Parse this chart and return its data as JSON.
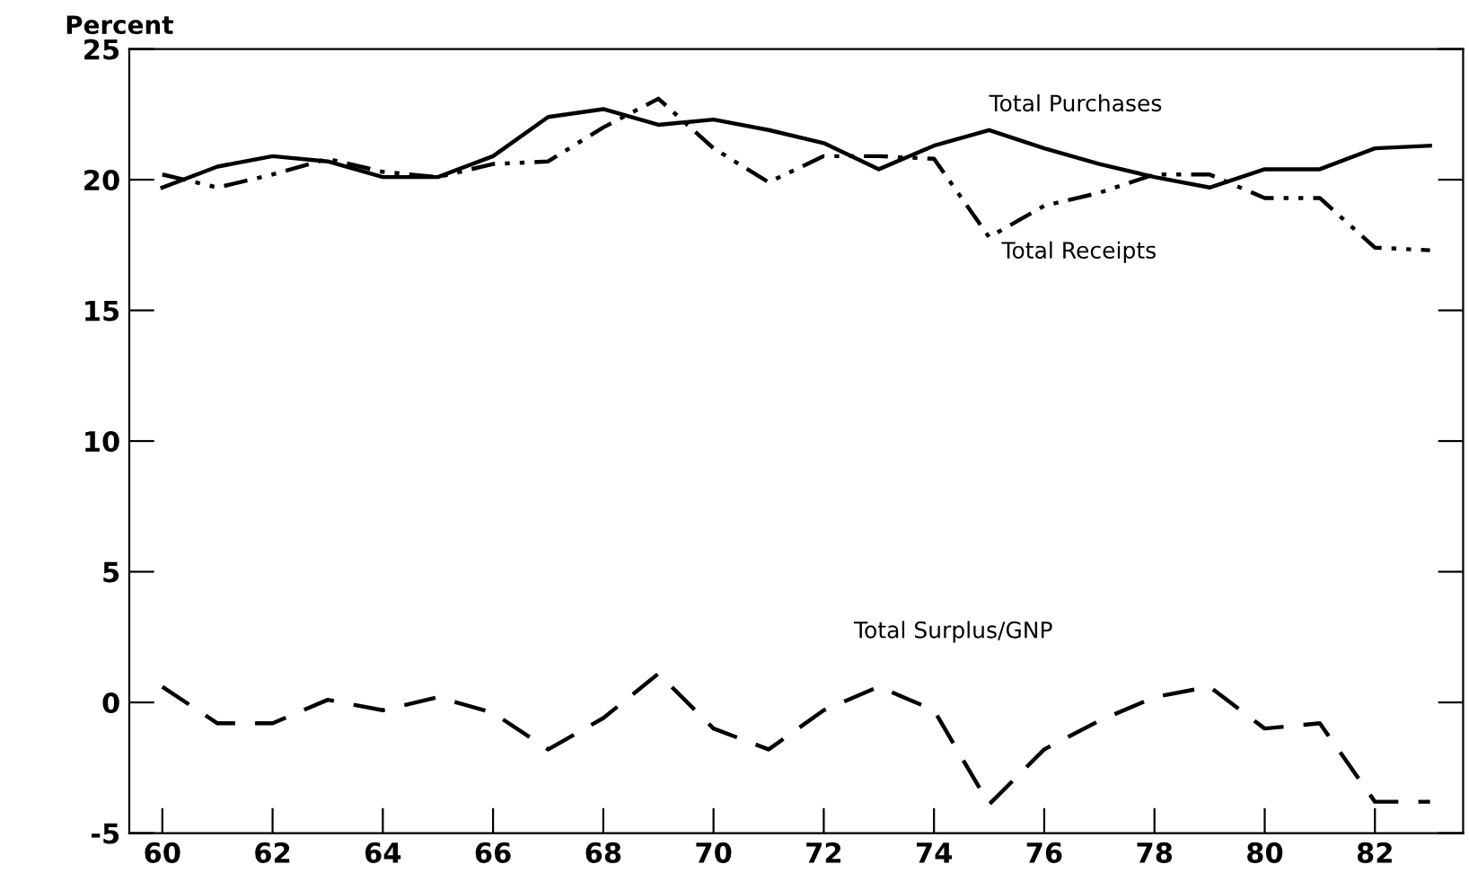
{
  "chart_data": {
    "type": "line",
    "ylabel": "Percent",
    "x": [
      60,
      61,
      62,
      63,
      64,
      65,
      66,
      67,
      68,
      69,
      70,
      71,
      72,
      73,
      74,
      75,
      76,
      77,
      78,
      79,
      80,
      81,
      82,
      83
    ],
    "series": [
      {
        "name": "Total Purchases",
        "color": "#000000",
        "line_style": "solid",
        "values": [
          19.7,
          20.5,
          20.9,
          20.7,
          20.1,
          20.1,
          20.9,
          22.4,
          22.7,
          22.1,
          22.3,
          21.9,
          21.4,
          20.4,
          21.3,
          21.9,
          21.2,
          20.6,
          20.1,
          19.7,
          20.4,
          20.4,
          21.2,
          21.3
        ]
      },
      {
        "name": "Total Receipts",
        "color": "#000000",
        "line_style": "dashdotdot",
        "values": [
          20.2,
          19.7,
          20.2,
          20.8,
          20.3,
          20.1,
          20.6,
          20.7,
          22.0,
          23.1,
          21.2,
          19.9,
          20.9,
          20.9,
          20.8,
          17.8,
          19.0,
          19.5,
          20.2,
          20.2,
          19.3,
          19.3,
          17.4,
          17.3
        ]
      },
      {
        "name": "Total Surplus/GNP",
        "color": "#000000",
        "line_style": "dashed",
        "values": [
          0.6,
          -0.8,
          -0.8,
          0.1,
          -0.3,
          0.2,
          -0.4,
          -1.8,
          -0.6,
          1.1,
          -1.0,
          -1.8,
          -0.3,
          0.6,
          -0.3,
          -3.9,
          -1.8,
          -0.7,
          0.2,
          0.6,
          -1.0,
          -0.8,
          -3.8,
          -3.8
        ]
      }
    ],
    "xlim": [
      59.4,
      83.6
    ],
    "ylim": [
      -5,
      25
    ],
    "xticks": [
      60,
      62,
      64,
      66,
      68,
      70,
      72,
      74,
      76,
      78,
      80,
      82
    ],
    "yticks": [
      -5,
      0,
      5,
      10,
      15,
      20,
      25
    ],
    "grid": false,
    "legend": false
  }
}
